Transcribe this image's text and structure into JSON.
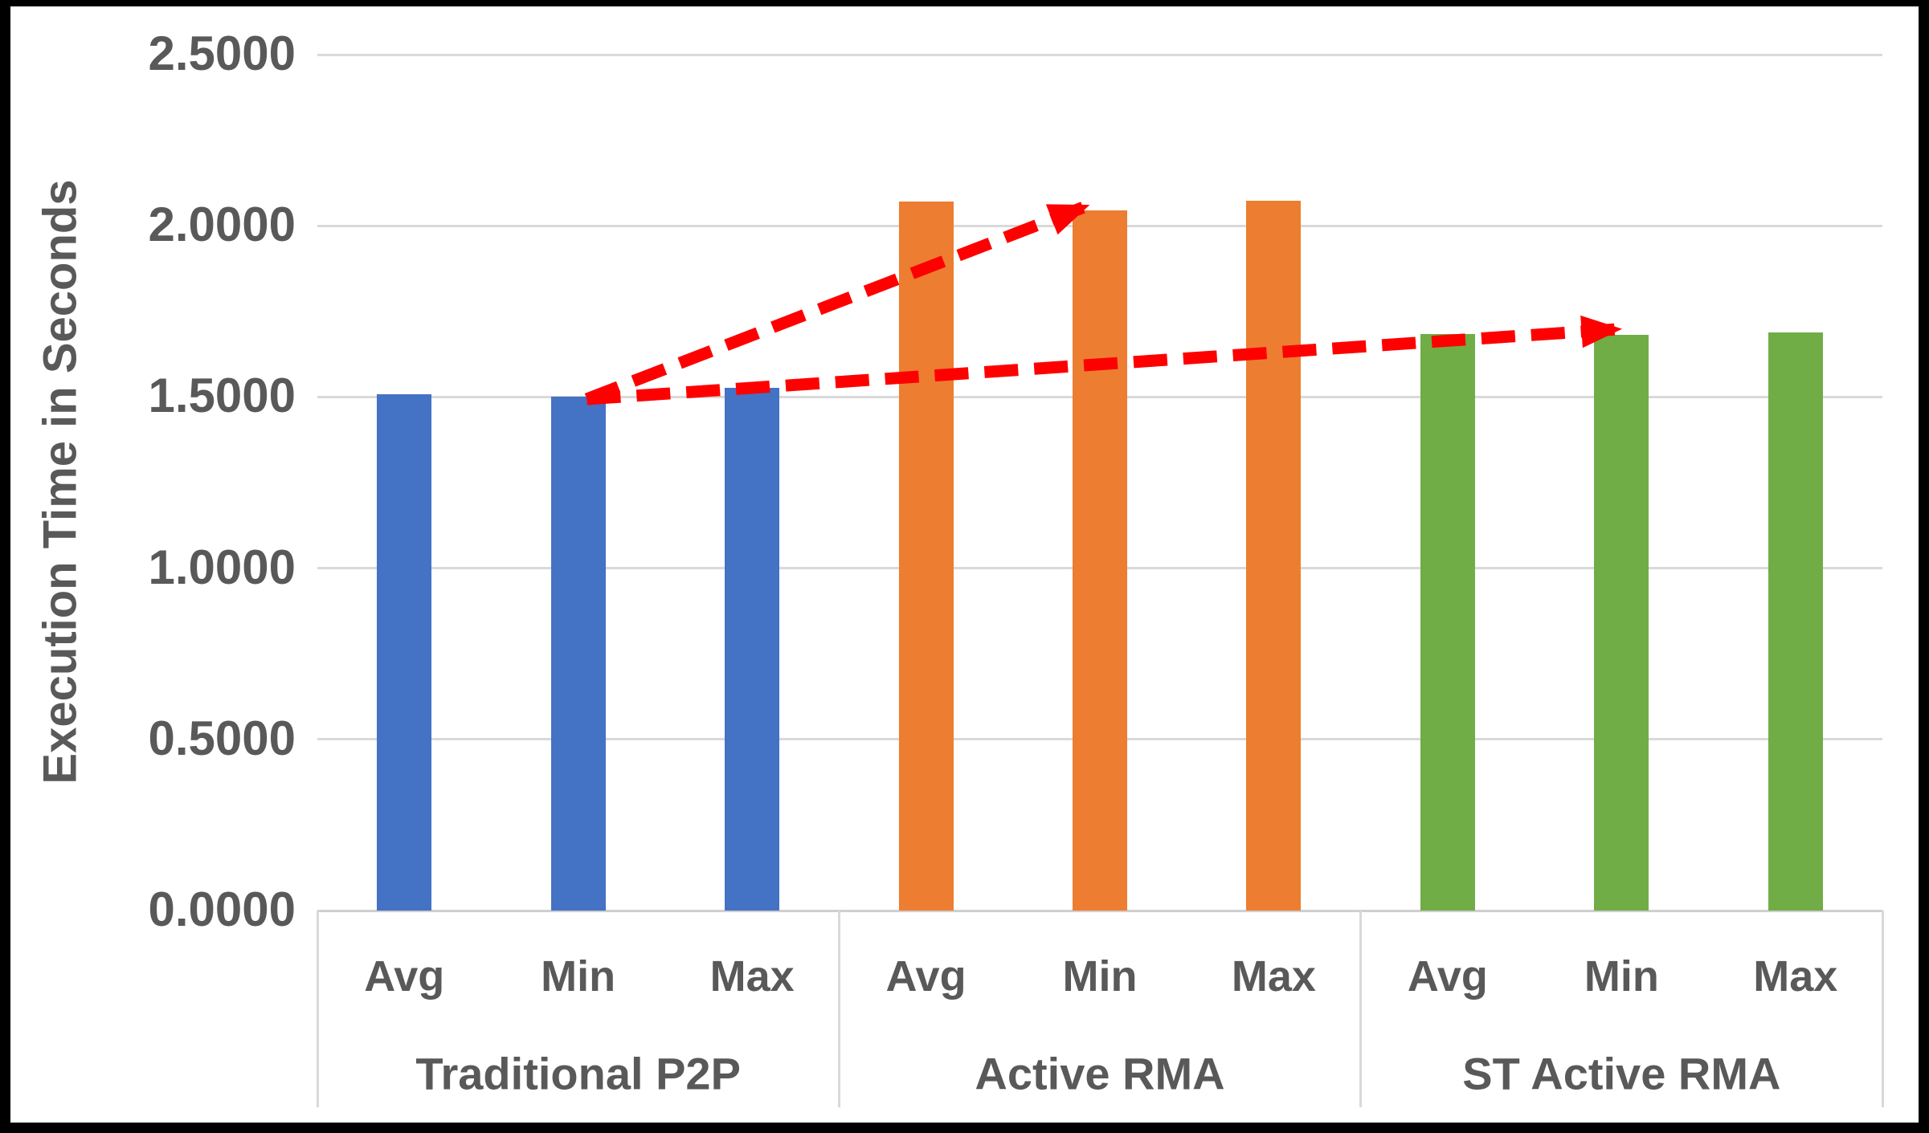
{
  "chart_data": {
    "type": "bar",
    "title": "",
    "ylabel": "Execution Time in Seconds",
    "xlabel": "",
    "ylim": [
      0.0,
      2.5
    ],
    "ytick_interval": 0.5,
    "ytick_labels": [
      "0.0000",
      "0.5000",
      "1.0000",
      "1.5000",
      "2.0000",
      "2.5000"
    ],
    "grid": true,
    "legend": "none",
    "subcategories": [
      "Avg",
      "Min",
      "Max"
    ],
    "groups": [
      {
        "label": "Traditional P2P",
        "color": "#4472C4",
        "values": [
          1.508,
          1.5,
          1.527
        ]
      },
      {
        "label": "Active RMA",
        "color": "#ED7D31",
        "values": [
          2.071,
          2.045,
          2.073
        ]
      },
      {
        "label": "ST Active RMA",
        "color": "#70AD47",
        "values": [
          1.685,
          1.682,
          1.689
        ]
      }
    ],
    "annotations": {
      "arrows": [
        {
          "shape": "dashed-arrow",
          "color": "#FF0000",
          "from": {
            "slot": 1.05,
            "value": 1.494
          },
          "to": {
            "slot": 3.92,
            "value": 2.057
          }
        },
        {
          "shape": "dashed-arrow",
          "color": "#FF0000",
          "from": {
            "slot": 1.05,
            "value": 1.494
          },
          "to": {
            "slot": 6.98,
            "value": 1.698
          }
        }
      ]
    },
    "colors": {
      "axis_text": "#595959",
      "gridline": "#D9D9D9",
      "frame": "#000000",
      "background": "#FFFFFF"
    }
  }
}
